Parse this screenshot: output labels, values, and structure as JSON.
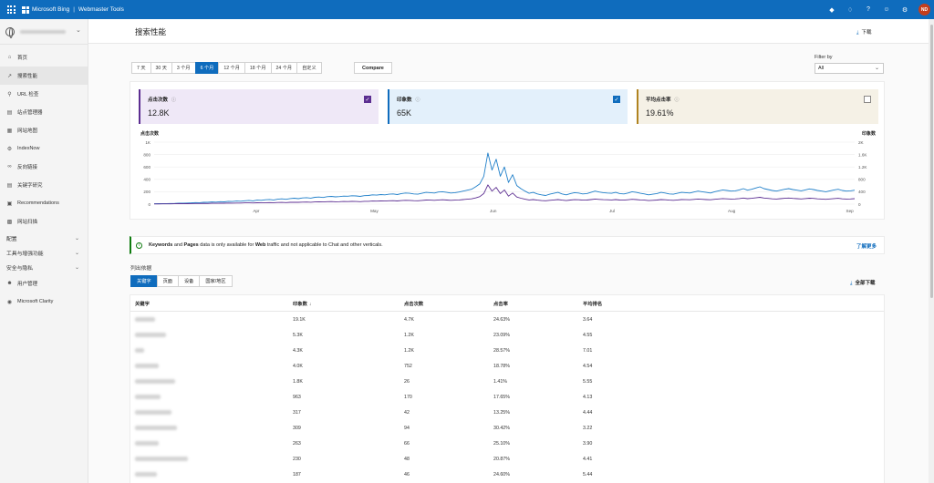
{
  "topbar": {
    "brand": "Microsoft Bing",
    "separator": "|",
    "product": "Webmaster Tools",
    "avatar_initials": "ND",
    "accent_color": "#0f6cbd",
    "icons": [
      "rewards-icon",
      "bell-icon",
      "help-icon",
      "feedback-icon",
      "settings-icon"
    ]
  },
  "sidebar": {
    "items": [
      {
        "label": "首页",
        "icon": "home-icon"
      },
      {
        "label": "搜索性能",
        "icon": "trend-icon",
        "active": true
      },
      {
        "label": "URL 检查",
        "icon": "search-icon"
      },
      {
        "label": "站点管理器",
        "icon": "document-icon"
      },
      {
        "label": "网站地图",
        "icon": "sitemap-icon"
      },
      {
        "label": "IndexNow",
        "icon": "gear-icon"
      },
      {
        "label": "反向链接",
        "icon": "link-icon"
      },
      {
        "label": "关键字研究",
        "icon": "document-icon"
      },
      {
        "label": "Recommendations",
        "icon": "recommend-icon"
      },
      {
        "label": "网站扫描",
        "icon": "scan-icon"
      }
    ],
    "groups": [
      {
        "label": "配置"
      },
      {
        "label": "工具与增强功能"
      },
      {
        "label": "安全与隐私"
      }
    ],
    "bottom_items": [
      {
        "label": "用户管理",
        "icon": "users-icon"
      },
      {
        "label": "Microsoft Clarity",
        "icon": "clarity-icon"
      }
    ]
  },
  "header": {
    "title": "搜索性能",
    "download": "下载"
  },
  "ranges": [
    "7 天",
    "30 天",
    "3 个月",
    "6 个月",
    "12 个月",
    "18 个月",
    "24 个月",
    "自定义"
  ],
  "selected_range": "6 个月",
  "compare": "Compare",
  "filter": {
    "label": "Filter by",
    "value": "All"
  },
  "metrics": [
    {
      "label": "点击次数",
      "value": "12.8K",
      "checked": true,
      "color": "#5c2e91"
    },
    {
      "label": "印象数",
      "value": "65K",
      "checked": true,
      "color": "#0f6cbd"
    },
    {
      "label": "平均点击率",
      "value": "19.61%",
      "checked": false,
      "color": "#b08320"
    }
  ],
  "chart_data": {
    "type": "line",
    "left_axis_label": "点击次数",
    "right_axis_label": "印象数",
    "left_ticks": [
      "1K",
      "800",
      "600",
      "400",
      "200",
      "0"
    ],
    "right_ticks": [
      "2K",
      "1.6K",
      "1.2K",
      "800",
      "400",
      "0"
    ],
    "ylim_left": [
      0,
      1000
    ],
    "ylim_right": [
      0,
      2000
    ],
    "x_ticks": [
      "Apr",
      "May",
      "Jun",
      "Jul",
      "Aug",
      "Sep"
    ],
    "series": [
      {
        "name": "印象数",
        "axis": "right",
        "color": "#1f7fc9",
        "values": [
          12,
          14,
          15,
          18,
          22,
          25,
          30,
          28,
          35,
          42,
          50,
          48,
          60,
          58,
          70,
          65,
          80,
          75,
          90,
          85,
          100,
          95,
          110,
          120,
          105,
          130,
          125,
          140,
          150,
          135,
          160,
          170,
          155,
          180,
          190,
          175,
          200,
          210,
          195,
          220,
          230,
          215,
          240,
          250,
          235,
          245,
          260,
          255,
          270,
          265,
          250,
          275,
          280,
          300,
          290,
          310,
          300,
          320,
          330,
          310,
          340,
          360,
          350,
          330,
          320,
          350,
          380,
          370,
          360,
          390,
          400,
          380,
          360,
          370,
          390,
          420,
          450,
          480,
          560,
          650,
          900,
          1650,
          1100,
          1450,
          900,
          1200,
          700,
          950,
          600,
          500,
          420,
          350,
          380,
          330,
          300,
          280,
          320,
          350,
          380,
          330,
          300,
          340,
          370,
          360,
          330,
          340,
          380,
          420,
          390,
          370,
          360,
          350,
          380,
          340,
          330,
          360,
          400,
          380,
          350,
          330,
          300,
          320,
          340,
          380,
          360,
          330,
          320,
          350,
          380,
          370,
          360,
          390,
          420,
          400,
          380,
          360,
          400,
          430,
          460,
          440,
          420,
          430,
          460,
          500,
          450,
          480,
          520,
          560,
          500,
          470,
          440,
          420,
          450,
          480,
          500,
          470,
          450,
          430,
          460,
          490,
          470,
          440,
          420,
          400,
          430,
          460,
          480,
          440,
          420,
          430,
          450
        ]
      },
      {
        "name": "点击次数",
        "axis": "left",
        "color": "#5c2e91",
        "values": [
          3,
          3,
          4,
          4,
          5,
          6,
          7,
          6,
          8,
          9,
          10,
          10,
          12,
          11,
          14,
          13,
          15,
          14,
          17,
          16,
          18,
          17,
          20,
          21,
          19,
          22,
          21,
          24,
          25,
          23,
          26,
          28,
          25,
          30,
          31,
          29,
          33,
          34,
          31,
          36,
          38,
          35,
          39,
          41,
          38,
          40,
          42,
          41,
          44,
          43,
          40,
          45,
          46,
          50,
          48,
          52,
          50,
          54,
          56,
          52,
          58,
          62,
          60,
          56,
          54,
          60,
          66,
          64,
          62,
          68,
          70,
          66,
          62,
          64,
          68,
          74,
          80,
          86,
          100,
          120,
          170,
          310,
          210,
          270,
          170,
          230,
          130,
          180,
          115,
          95,
          80,
          68,
          74,
          64,
          58,
          54,
          62,
          68,
          74,
          64,
          58,
          66,
          72,
          70,
          64,
          66,
          74,
          82,
          76,
          72,
          70,
          68,
          74,
          66,
          64,
          70,
          78,
          74,
          68,
          64,
          58,
          62,
          66,
          74,
          70,
          64,
          62,
          68,
          74,
          72,
          70,
          76,
          82,
          78,
          74,
          70,
          78,
          84,
          90,
          86,
          82,
          84,
          90,
          98,
          88,
          94,
          102,
          110,
          98,
          92,
          86,
          82,
          88,
          94,
          98,
          92,
          88,
          84,
          90,
          96,
          92,
          86,
          82,
          78,
          84,
          90,
          94,
          86,
          82,
          84,
          88
        ]
      }
    ]
  },
  "banner": {
    "text": "Keywords and Pages data is only available for Web traffic and not applicable to Chat and other verticals.",
    "learn_more": "了解更多"
  },
  "list": {
    "label": "列出依据",
    "tabs": [
      "关键字",
      "页面",
      "设备",
      "国家/地区"
    ],
    "selected_tab": "关键字",
    "download_all": "全部下载",
    "columns": [
      "关键字",
      "印象数",
      "点击次数",
      "点击率",
      "平均排名"
    ],
    "rows": [
      {
        "impressions": "19.1K",
        "clicks": "4.7K",
        "ctr": "24.63%",
        "position": "3.64"
      },
      {
        "impressions": "5.3K",
        "clicks": "1.2K",
        "ctr": "23.09%",
        "position": "4.55"
      },
      {
        "impressions": "4.3K",
        "clicks": "1.2K",
        "ctr": "28.57%",
        "position": "7.01"
      },
      {
        "impressions": "4.0K",
        "clicks": "752",
        "ctr": "18.78%",
        "position": "4.54"
      },
      {
        "impressions": "1.8K",
        "clicks": "26",
        "ctr": "1.41%",
        "position": "5.55"
      },
      {
        "impressions": "963",
        "clicks": "170",
        "ctr": "17.65%",
        "position": "4.13"
      },
      {
        "impressions": "317",
        "clicks": "42",
        "ctr": "13.25%",
        "position": "4.44"
      },
      {
        "impressions": "309",
        "clicks": "94",
        "ctr": "30.42%",
        "position": "3.22"
      },
      {
        "impressions": "263",
        "clicks": "66",
        "ctr": "25.10%",
        "position": "3.90"
      },
      {
        "impressions": "230",
        "clicks": "48",
        "ctr": "20.87%",
        "position": "4.41"
      },
      {
        "impressions": "187",
        "clicks": "46",
        "ctr": "24.60%",
        "position": "5.44"
      }
    ]
  }
}
